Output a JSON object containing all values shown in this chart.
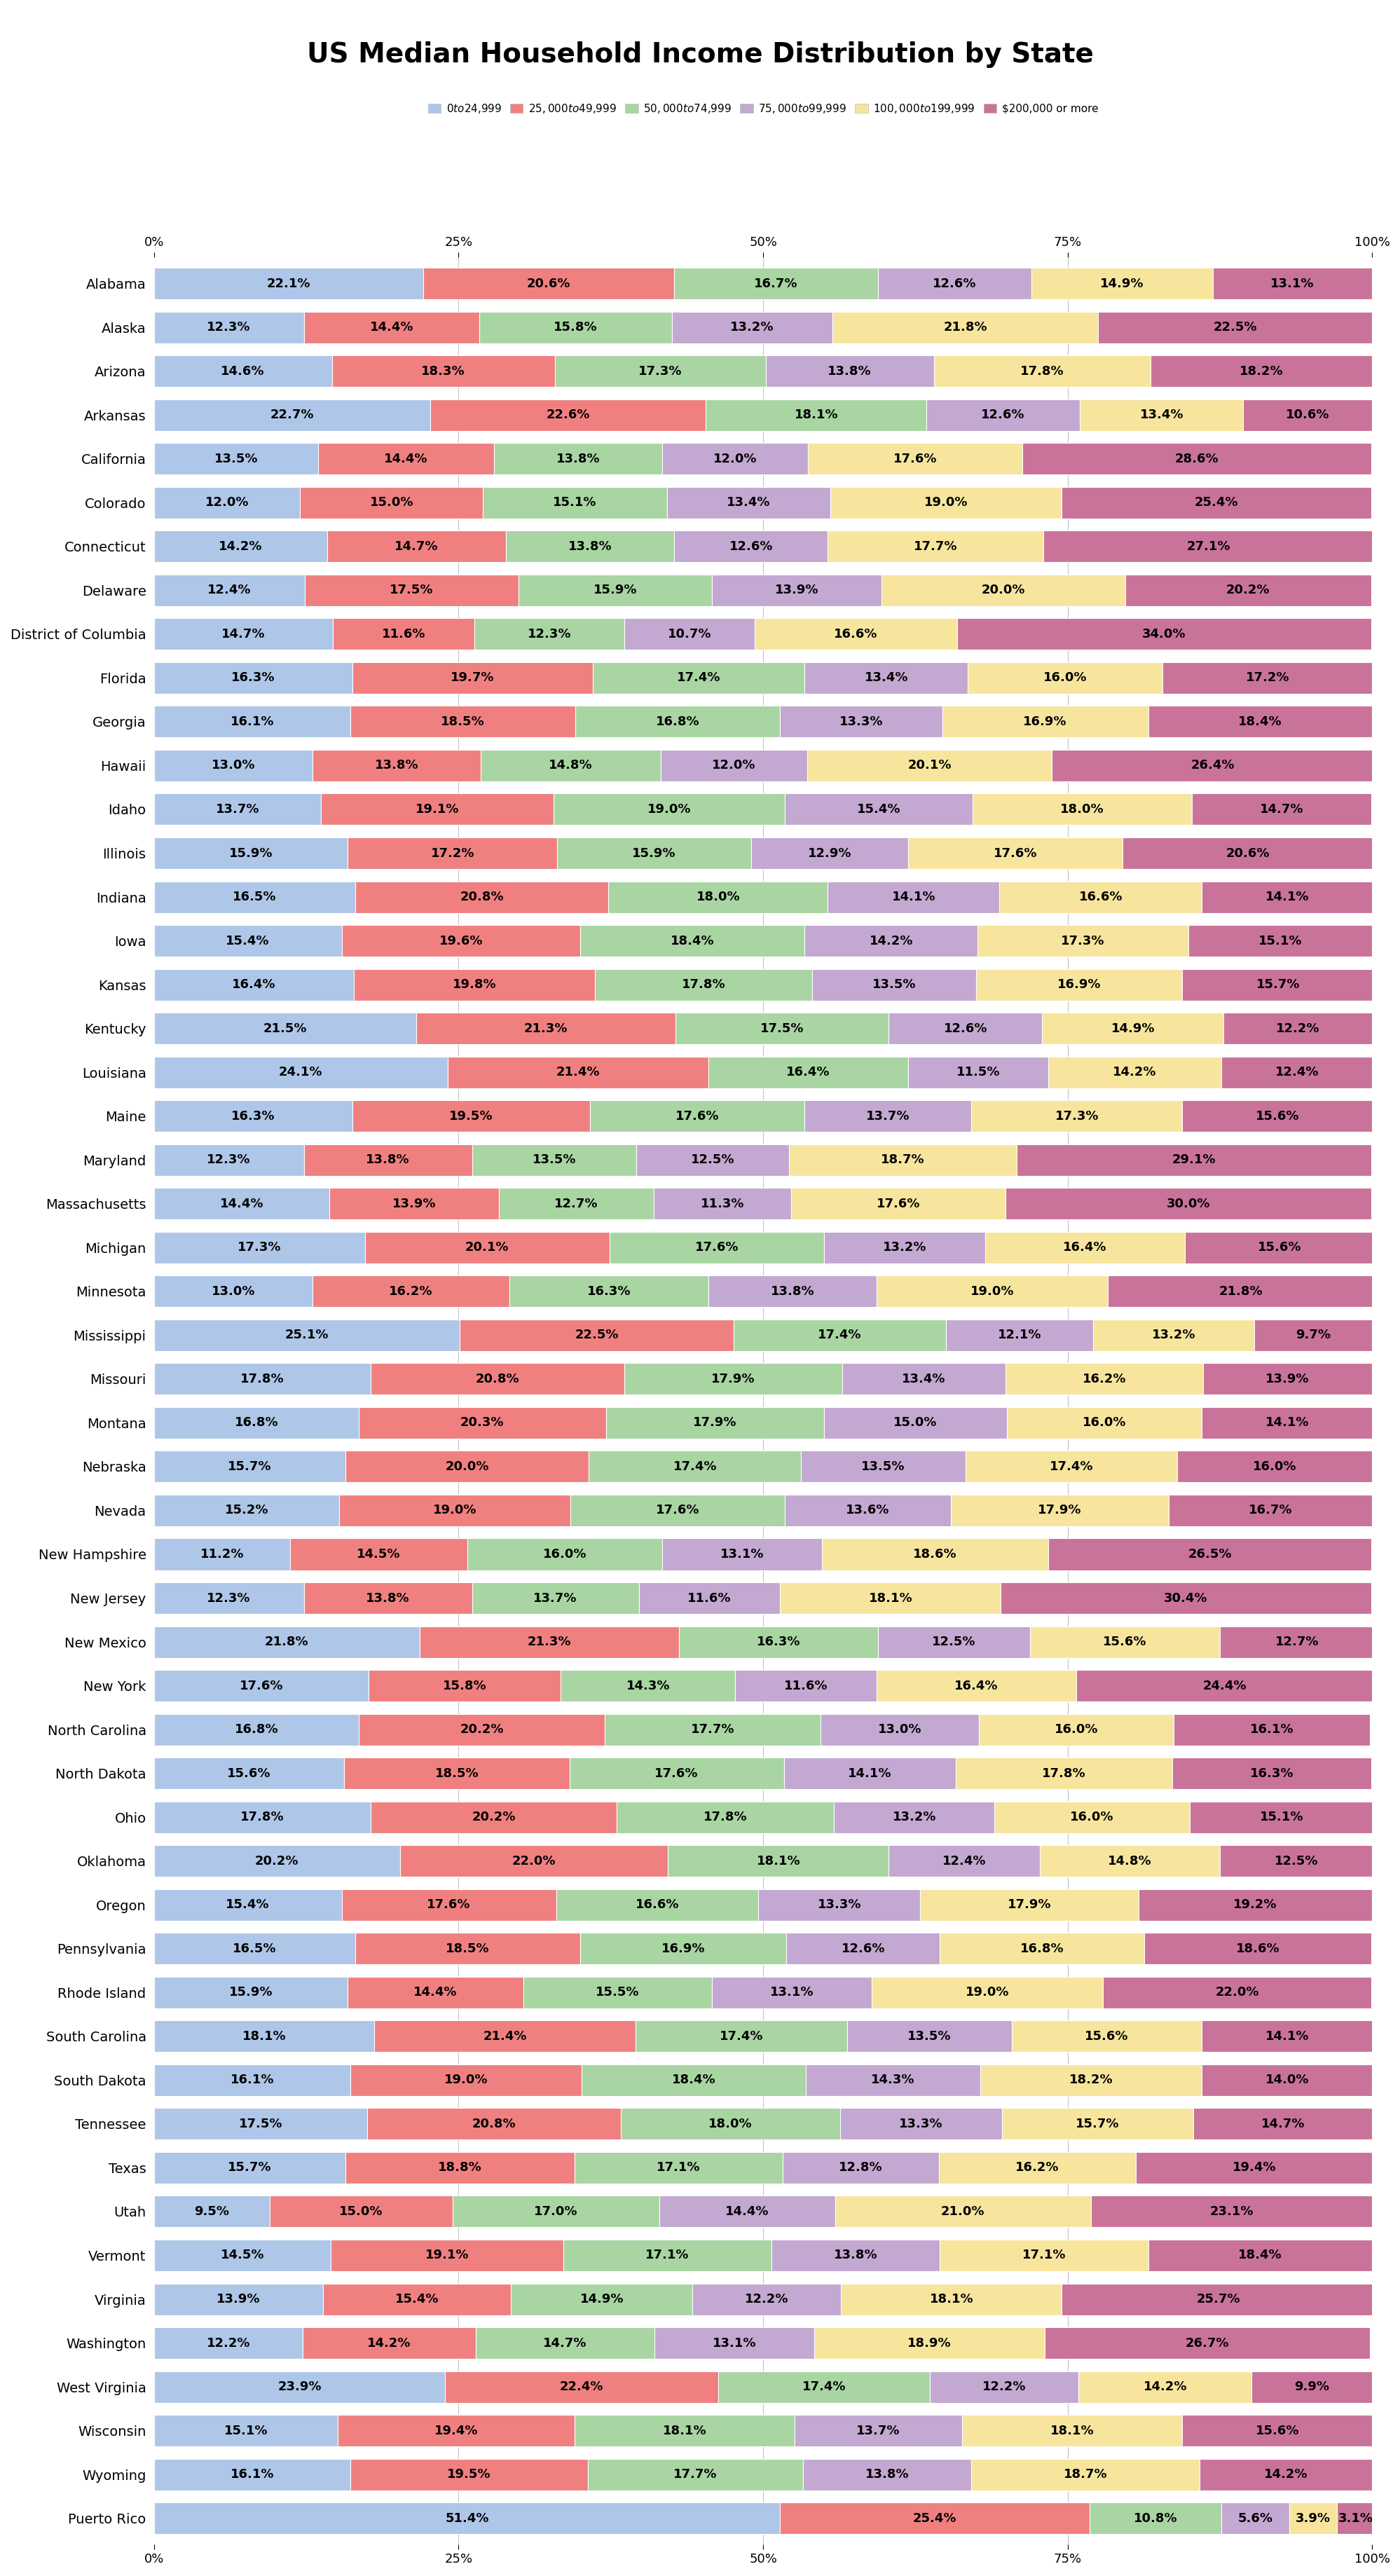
{
  "title": "US Median Household Income Distribution by State",
  "categories": [
    "$0 to $24,999",
    "$25,000 to $49,999",
    "$50,000 to $74,999",
    "$75,000 to $99,999",
    "$100,000 to $199,999",
    "$200,000 or more"
  ],
  "colors": [
    "#aec6e8",
    "#f08080",
    "#a8d5a2",
    "#c3a8d1",
    "#f7e59e",
    "#c9739a"
  ],
  "states": [
    "Alabama",
    "Alaska",
    "Arizona",
    "Arkansas",
    "California",
    "Colorado",
    "Connecticut",
    "Delaware",
    "District of Columbia",
    "Florida",
    "Georgia",
    "Hawaii",
    "Idaho",
    "Illinois",
    "Indiana",
    "Iowa",
    "Kansas",
    "Kentucky",
    "Louisiana",
    "Maine",
    "Maryland",
    "Massachusetts",
    "Michigan",
    "Minnesota",
    "Mississippi",
    "Missouri",
    "Montana",
    "Nebraska",
    "Nevada",
    "New Hampshire",
    "New Jersey",
    "New Mexico",
    "New York",
    "North Carolina",
    "North Dakota",
    "Ohio",
    "Oklahoma",
    "Oregon",
    "Pennsylvania",
    "Rhode Island",
    "South Carolina",
    "South Dakota",
    "Tennessee",
    "Texas",
    "Utah",
    "Vermont",
    "Virginia",
    "Washington",
    "West Virginia",
    "Wisconsin",
    "Wyoming",
    "Puerto Rico"
  ],
  "values": [
    [
      22.1,
      20.6,
      16.7,
      12.6,
      14.9,
      13.1
    ],
    [
      12.3,
      14.4,
      15.8,
      13.2,
      21.8,
      22.5
    ],
    [
      14.6,
      18.3,
      17.3,
      13.8,
      17.8,
      18.2
    ],
    [
      22.7,
      22.6,
      18.1,
      12.6,
      13.4,
      10.6
    ],
    [
      13.5,
      14.4,
      13.8,
      12.0,
      17.6,
      28.6
    ],
    [
      12.0,
      15.0,
      15.1,
      13.4,
      19.0,
      25.4
    ],
    [
      14.2,
      14.7,
      13.8,
      12.6,
      17.7,
      27.1
    ],
    [
      12.4,
      17.5,
      15.9,
      13.9,
      20.0,
      20.2
    ],
    [
      14.7,
      11.6,
      12.3,
      10.7,
      16.6,
      34.0
    ],
    [
      16.3,
      19.7,
      17.4,
      13.4,
      16.0,
      17.2
    ],
    [
      16.1,
      18.5,
      16.8,
      13.3,
      16.9,
      18.4
    ],
    [
      13.0,
      13.8,
      14.8,
      12.0,
      20.1,
      26.4
    ],
    [
      13.7,
      19.1,
      19.0,
      15.4,
      18.0,
      14.7
    ],
    [
      15.9,
      17.2,
      15.9,
      12.9,
      17.6,
      20.6
    ],
    [
      16.5,
      20.8,
      18.0,
      14.1,
      16.6,
      14.1
    ],
    [
      15.4,
      19.6,
      18.4,
      14.2,
      17.3,
      15.1
    ],
    [
      16.4,
      19.8,
      17.8,
      13.5,
      16.9,
      15.7
    ],
    [
      21.5,
      21.3,
      17.5,
      12.6,
      14.9,
      12.2
    ],
    [
      24.1,
      21.4,
      16.4,
      11.5,
      14.2,
      12.4
    ],
    [
      16.3,
      19.5,
      17.6,
      13.7,
      17.3,
      15.6
    ],
    [
      12.3,
      13.8,
      13.5,
      12.5,
      18.7,
      29.1
    ],
    [
      14.4,
      13.9,
      12.7,
      11.3,
      17.6,
      30.0
    ],
    [
      17.3,
      20.1,
      17.6,
      13.2,
      16.4,
      15.6
    ],
    [
      13.0,
      16.2,
      16.3,
      13.8,
      19.0,
      21.8
    ],
    [
      25.1,
      22.5,
      17.4,
      12.1,
      13.2,
      9.7
    ],
    [
      17.8,
      20.8,
      17.9,
      13.4,
      16.2,
      13.9
    ],
    [
      16.8,
      20.3,
      17.9,
      15.0,
      16.0,
      14.1
    ],
    [
      15.7,
      20.0,
      17.4,
      13.5,
      17.4,
      16.0
    ],
    [
      15.2,
      19.0,
      17.6,
      13.6,
      17.9,
      16.7
    ],
    [
      11.2,
      14.5,
      16.0,
      13.1,
      18.6,
      26.5
    ],
    [
      12.3,
      13.8,
      13.7,
      11.6,
      18.1,
      30.4
    ],
    [
      21.8,
      21.3,
      16.3,
      12.5,
      15.6,
      12.7
    ],
    [
      17.6,
      15.8,
      14.3,
      11.6,
      16.4,
      24.4
    ],
    [
      16.8,
      20.2,
      17.7,
      13.0,
      16.0,
      16.1
    ],
    [
      15.6,
      18.5,
      17.6,
      14.1,
      17.8,
      16.3
    ],
    [
      17.8,
      20.2,
      17.8,
      13.2,
      16.0,
      15.1
    ],
    [
      20.2,
      22.0,
      18.1,
      12.4,
      14.8,
      12.5
    ],
    [
      15.4,
      17.6,
      16.6,
      13.3,
      17.9,
      19.2
    ],
    [
      16.5,
      18.5,
      16.9,
      12.6,
      16.8,
      18.6
    ],
    [
      15.9,
      14.4,
      15.5,
      13.1,
      19.0,
      22.0
    ],
    [
      18.1,
      21.4,
      17.4,
      13.5,
      15.6,
      14.1
    ],
    [
      16.1,
      19.0,
      18.4,
      14.3,
      18.2,
      14.0
    ],
    [
      17.5,
      20.8,
      18.0,
      13.3,
      15.7,
      14.7
    ],
    [
      15.7,
      18.8,
      17.1,
      12.8,
      16.2,
      19.4
    ],
    [
      9.5,
      15.0,
      17.0,
      14.4,
      21.0,
      23.1
    ],
    [
      14.5,
      19.1,
      17.1,
      13.8,
      17.1,
      18.4
    ],
    [
      13.9,
      15.4,
      14.9,
      12.2,
      18.1,
      25.7
    ],
    [
      12.2,
      14.2,
      14.7,
      13.1,
      18.9,
      26.7
    ],
    [
      23.9,
      22.4,
      17.4,
      12.2,
      14.2,
      9.9
    ],
    [
      15.1,
      19.4,
      18.1,
      13.7,
      18.1,
      15.6
    ],
    [
      16.1,
      19.5,
      17.7,
      13.8,
      18.7,
      14.2
    ],
    [
      51.4,
      25.4,
      10.8,
      5.6,
      3.9,
      3.1
    ]
  ],
  "background_color": "#ffffff",
  "bar_height": 0.72,
  "title_fontsize": 28,
  "label_fontsize": 13,
  "tick_fontsize": 13,
  "legend_fontsize": 11,
  "state_fontsize": 14
}
